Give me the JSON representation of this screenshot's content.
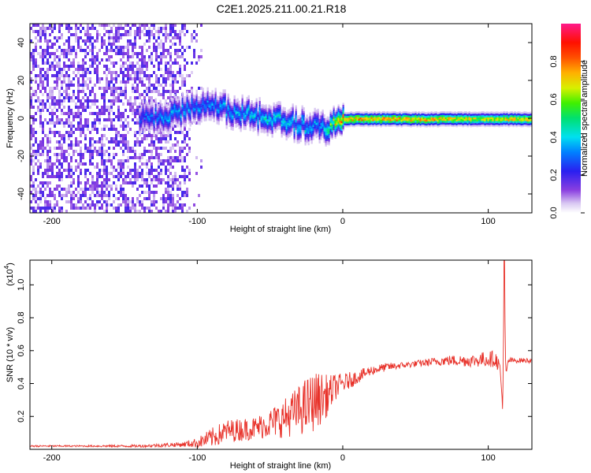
{
  "title": "C2E1.2025.211.00.21.R18",
  "colorbar": {
    "label": "Normalized spectral amplitude",
    "ticks": [
      "0.0",
      "0.2",
      "0.4",
      "0.6",
      "0.8"
    ],
    "range": [
      0.0,
      1.0
    ]
  },
  "chart_data": [
    {
      "type": "heatmap",
      "xlabel": "Height of straight line (km)",
      "ylabel": "Frequency (Hz)",
      "xlim": [
        -215,
        130
      ],
      "ylim": [
        -50,
        50
      ],
      "xticks": [
        "-200",
        "-100",
        "0",
        "100"
      ],
      "yticks": [
        "-40",
        "-20",
        "0",
        "20",
        "40"
      ],
      "grid": false,
      "colorscale": "rainbow (0 = white/violet, 1 = magenta/red)",
      "description_points": [
        {
          "x": -215,
          "y_band": [
            -50,
            50
          ],
          "amplitude": 0.15
        },
        {
          "x": -140,
          "y_center": 0,
          "amplitude": 0.3
        },
        {
          "x": -120,
          "y_center": 2,
          "amplitude": 0.4
        },
        {
          "x": -97,
          "y_center": 8,
          "amplitude": 0.35
        },
        {
          "x": -50,
          "y_center": 0,
          "amplitude": 0.45
        },
        {
          "x": -15,
          "y_center": -5,
          "amplitude": 0.4
        },
        {
          "x": 0,
          "y_center": 0,
          "amplitude": 0.9
        },
        {
          "x": 50,
          "y_center": 0,
          "amplitude": 0.9
        },
        {
          "x": 100,
          "y_center": 0,
          "amplitude": 0.75
        },
        {
          "x": 110,
          "y_center": 0,
          "amplitude": 0.85
        },
        {
          "x": 130,
          "y_center": 0,
          "amplitude": 0.8
        }
      ],
      "noise_region_x": [
        -215,
        -97
      ]
    },
    {
      "type": "line",
      "xlabel": "Height of straight line (km)",
      "ylabel": "SNR (10 * v/v)",
      "y_scale_label": "(x10",
      "y_scale_exponent": "4",
      "y_scale": 10000,
      "xlim": [
        -215,
        130
      ],
      "ylim": [
        0.0,
        1.15
      ],
      "xticks": [
        "-200",
        "-100",
        "0",
        "100"
      ],
      "yticks": [
        "0.2",
        "0.4",
        "0.6",
        "0.8",
        "1.0"
      ],
      "grid": false,
      "series": [
        {
          "color": "#e8322a",
          "x": [
            -215,
            -180,
            -140,
            -110,
            -100,
            -90,
            -80,
            -70,
            -60,
            -50,
            -40,
            -30,
            -25,
            -20,
            -15,
            -10,
            -5,
            0,
            5,
            10,
            20,
            30,
            40,
            50,
            60,
            70,
            80,
            90,
            100,
            105,
            108,
            110,
            111,
            112,
            114,
            118,
            125,
            130
          ],
          "y": [
            0.02,
            0.02,
            0.02,
            0.03,
            0.04,
            0.07,
            0.11,
            0.12,
            0.13,
            0.16,
            0.19,
            0.24,
            0.26,
            0.29,
            0.31,
            0.33,
            0.38,
            0.4,
            0.42,
            0.44,
            0.48,
            0.5,
            0.51,
            0.52,
            0.53,
            0.54,
            0.54,
            0.54,
            0.55,
            0.55,
            0.5,
            0.25,
            1.15,
            0.45,
            0.54,
            0.54,
            0.54,
            0.54
          ],
          "noise": [
            0.005,
            0.005,
            0.008,
            0.015,
            0.03,
            0.06,
            0.07,
            0.07,
            0.07,
            0.09,
            0.12,
            0.15,
            0.18,
            0.18,
            0.16,
            0.12,
            0.08,
            0.06,
            0.05,
            0.04,
            0.03,
            0.025,
            0.02,
            0.02,
            0.025,
            0.03,
            0.035,
            0.04,
            0.05,
            0.05,
            0.04,
            0.03,
            0.0,
            0.03,
            0.02,
            0.015,
            0.015,
            0.015
          ]
        }
      ]
    }
  ]
}
